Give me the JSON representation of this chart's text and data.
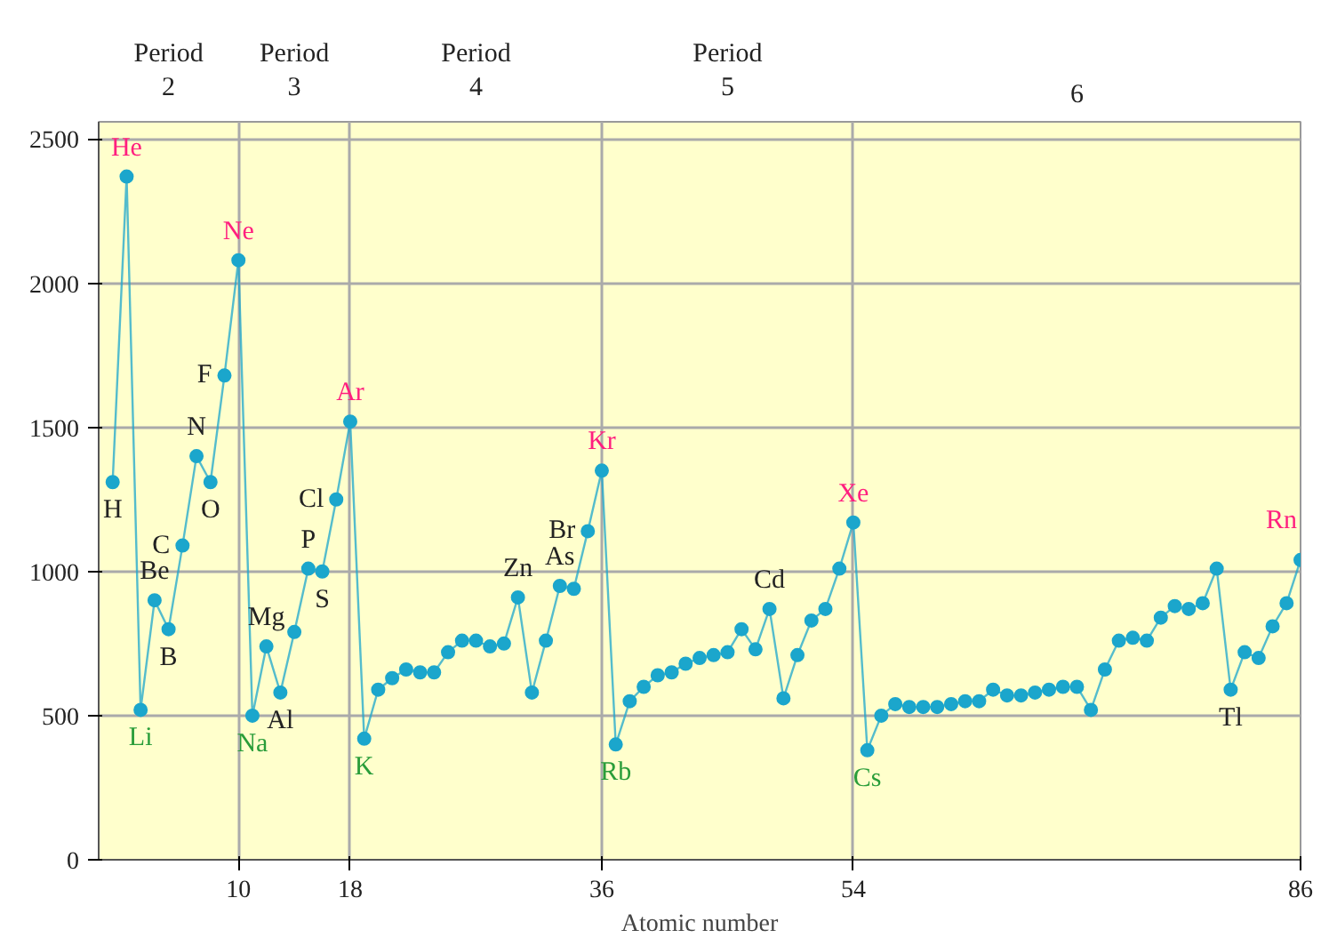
{
  "chart_data": {
    "type": "line",
    "xlabel": "Atomic number",
    "xlim": [
      0,
      86
    ],
    "xticks": [
      10,
      18,
      36,
      54,
      86
    ],
    "ylim": [
      0,
      2560
    ],
    "yticks": [
      0,
      500,
      1000,
      1500,
      2000,
      2500
    ],
    "grid": true,
    "marker": "circle",
    "line_style": "solid",
    "series": [
      {
        "color": "#1ba6cc",
        "x": [
          1,
          2,
          3,
          4,
          5,
          6,
          7,
          8,
          9,
          10,
          11,
          12,
          13,
          14,
          15,
          16,
          17,
          18,
          19,
          20,
          21,
          22,
          23,
          24,
          25,
          26,
          27,
          28,
          29,
          30,
          31,
          32,
          33,
          34,
          35,
          36,
          37,
          38,
          39,
          40,
          41,
          42,
          43,
          44,
          45,
          46,
          47,
          48,
          49,
          50,
          51,
          52,
          53,
          54,
          55,
          56,
          57,
          58,
          59,
          60,
          61,
          62,
          63,
          64,
          65,
          66,
          67,
          68,
          69,
          70,
          71,
          72,
          73,
          74,
          75,
          76,
          77,
          78,
          79,
          80,
          81,
          82,
          83,
          84,
          85,
          86
        ],
        "values": [
          1310,
          2370,
          520,
          900,
          800,
          1090,
          1400,
          1310,
          1680,
          2080,
          500,
          740,
          580,
          790,
          1010,
          1000,
          1250,
          1520,
          420,
          590,
          630,
          660,
          650,
          650,
          720,
          760,
          760,
          740,
          750,
          910,
          580,
          760,
          950,
          940,
          1140,
          1350,
          400,
          550,
          600,
          640,
          650,
          680,
          700,
          710,
          720,
          800,
          730,
          870,
          560,
          710,
          830,
          870,
          1010,
          1170,
          380,
          500,
          540,
          530,
          530,
          530,
          540,
          550,
          550,
          590,
          570,
          570,
          580,
          590,
          600,
          600,
          520,
          660,
          760,
          770,
          760,
          840,
          880,
          870,
          890,
          1010,
          590,
          720,
          700,
          810,
          890,
          1040
        ]
      }
    ],
    "annotations": [
      "Period\n2",
      "Period\n3",
      "Period\n4",
      "Period\n5",
      "6",
      {
        "text": "He",
        "x": 2,
        "y": 2370
      },
      {
        "text": "Ne",
        "x": 10,
        "y": 2080
      },
      {
        "text": "Ar",
        "x": 18,
        "y": 1520
      },
      {
        "text": "Kr",
        "x": 36,
        "y": 1350
      },
      {
        "text": "Xe",
        "x": 54,
        "y": 1170
      },
      {
        "text": "Rn",
        "x": 86,
        "y": 1040
      },
      {
        "text": "H",
        "x": 1,
        "y": 1310
      },
      {
        "text": "Li",
        "x": 3,
        "y": 520
      },
      {
        "text": "Na",
        "x": 11,
        "y": 500
      },
      {
        "text": "K",
        "x": 19,
        "y": 420
      },
      {
        "text": "Rb",
        "x": 37,
        "y": 400
      },
      {
        "text": "Cs",
        "x": 55,
        "y": 380
      },
      {
        "text": "Tl",
        "x": 81,
        "y": 590
      },
      {
        "text": "B",
        "x": 5,
        "y": 800
      },
      {
        "text": "O",
        "x": 8,
        "y": 1310
      },
      {
        "text": "S",
        "x": 16,
        "y": 1000
      },
      {
        "text": "F",
        "x": 9,
        "y": 1680
      },
      {
        "text": "N",
        "x": 7,
        "y": 1400
      },
      {
        "text": "C",
        "x": 6,
        "y": 1090
      },
      {
        "text": "Be",
        "x": 4,
        "y": 900
      },
      {
        "text": "Mg",
        "x": 12,
        "y": 740
      },
      {
        "text": "Al",
        "x": 13,
        "y": 580
      },
      {
        "text": "P",
        "x": 15,
        "y": 1010
      },
      {
        "text": "Cl",
        "x": 17,
        "y": 1250
      },
      {
        "text": "Zn",
        "x": 30,
        "y": 910
      },
      {
        "text": "As",
        "x": 33,
        "y": 950
      },
      {
        "text": "Br",
        "x": 35,
        "y": 1140
      },
      {
        "text": "Cd",
        "x": 48,
        "y": 870
      }
    ]
  }
}
